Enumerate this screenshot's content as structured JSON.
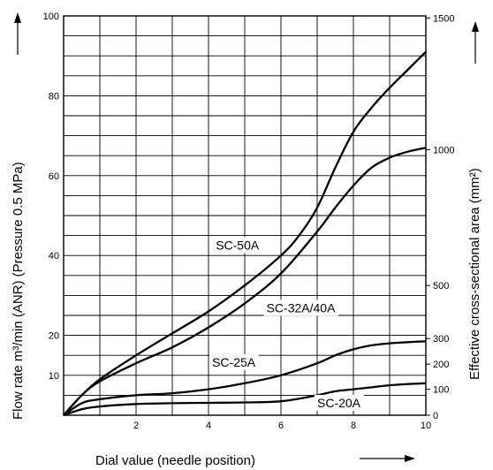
{
  "chart_data": {
    "type": "line",
    "xlabel": "Dial value (needle position)",
    "ylabel_left": "Flow rate m³/min (ANR) (Pressure 0.5 MPa)",
    "ylabel_right": "Effective cross-sectional area (mm²)",
    "xlim": [
      0,
      10
    ],
    "ylim_left": [
      0,
      100
    ],
    "x_ticks": [
      "2",
      "4",
      "6",
      "8",
      "10"
    ],
    "y_left_ticks": [
      "10",
      "20",
      "40",
      "60",
      "80",
      "100"
    ],
    "y_right_ticks": [
      "0",
      "100",
      "200",
      "300",
      "500",
      "1000",
      "1500"
    ],
    "right_tick_left_equiv": [
      0,
      6.5,
      12.8,
      19.2,
      32.5,
      66.5,
      99.5
    ],
    "grid": true,
    "series": [
      {
        "name": "SC-50A",
        "x": [
          0,
          0.5,
          1,
          2,
          3,
          4,
          5,
          6,
          6.5,
          7,
          7.5,
          8,
          8.5,
          9,
          9.5,
          10
        ],
        "y": [
          0,
          5,
          9,
          15,
          20.5,
          26,
          32.5,
          40,
          45,
          52,
          62,
          71,
          77,
          82,
          86.5,
          91
        ]
      },
      {
        "name": "SC-32A/40A",
        "x": [
          0,
          0.5,
          1,
          2,
          3,
          4,
          5,
          6,
          7,
          7.5,
          8,
          8.5,
          9,
          9.5,
          10
        ],
        "y": [
          0,
          5,
          8.5,
          13,
          17,
          22,
          28,
          35.5,
          46,
          52,
          57.5,
          62,
          64.5,
          66,
          67
        ]
      },
      {
        "name": "SC-25A",
        "x": [
          0,
          0.5,
          1,
          2,
          3,
          4,
          5,
          6,
          7,
          7.5,
          8,
          8.5,
          9,
          9.5,
          10
        ],
        "y": [
          0,
          3,
          4,
          5,
          5.5,
          6.5,
          8,
          10,
          13,
          15,
          16.5,
          17.5,
          18,
          18.3,
          18.5
        ]
      },
      {
        "name": "SC-20A",
        "x": [
          0,
          0.5,
          1,
          2,
          3,
          4,
          5,
          6,
          7,
          7.5,
          8,
          8.5,
          9,
          9.5,
          10
        ],
        "y": [
          0,
          1.5,
          2.2,
          2.8,
          3,
          3.1,
          3.2,
          3.5,
          5,
          6,
          6.5,
          7,
          7.5,
          7.8,
          8
        ]
      }
    ]
  }
}
